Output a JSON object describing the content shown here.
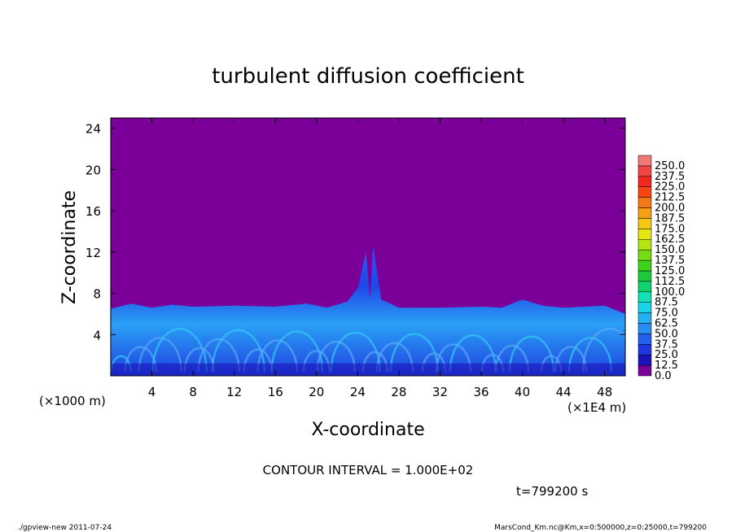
{
  "chart_data": {
    "type": "heatmap",
    "title": "turbulent diffusion coefficient",
    "xlabel": "X-coordinate",
    "ylabel": "Z-coordinate",
    "x_unit": "(×1E4 m)",
    "y_unit": "(×1000 m)",
    "xlim": [
      0,
      50
    ],
    "ylim": [
      0,
      25
    ],
    "x_ticks": [
      "4",
      "8",
      "12",
      "16",
      "20",
      "24",
      "28",
      "32",
      "36",
      "40",
      "44",
      "48"
    ],
    "y_ticks": [
      "4",
      "8",
      "12",
      "16",
      "20",
      "24"
    ],
    "x_tick_values": [
      4,
      8,
      12,
      16,
      20,
      24,
      28,
      32,
      36,
      40,
      44,
      48
    ],
    "y_tick_values": [
      4,
      8,
      12,
      16,
      20,
      24
    ],
    "colorbar": {
      "levels": [
        "0.0",
        "12.5",
        "25.0",
        "37.5",
        "50.0",
        "62.5",
        "75.0",
        "87.5",
        "100.0",
        "112.5",
        "125.0",
        "137.5",
        "150.0",
        "162.5",
        "175.0",
        "187.5",
        "200.0",
        "212.5",
        "225.0",
        "237.5",
        "250.0"
      ],
      "colors": [
        "#7a0099",
        "#1a14b8",
        "#1f35e0",
        "#2460f0",
        "#2a8cf5",
        "#23b2f0",
        "#19d4e8",
        "#14e0b4",
        "#12d46e",
        "#1ec83c",
        "#3cd41a",
        "#78dc14",
        "#b4e614",
        "#e6e614",
        "#f5c814",
        "#f5a014",
        "#f57814",
        "#f54614",
        "#f0281e",
        "#f04646",
        "#f07878"
      ]
    },
    "boundary_layer_top": [
      [
        0,
        6.5
      ],
      [
        2,
        7.0
      ],
      [
        4,
        6.6
      ],
      [
        6,
        6.9
      ],
      [
        8,
        6.7
      ],
      [
        12,
        6.8
      ],
      [
        16,
        6.7
      ],
      [
        19,
        7.0
      ],
      [
        21,
        6.6
      ],
      [
        23,
        7.2
      ],
      [
        24,
        8.5
      ],
      [
        24.8,
        12.0
      ],
      [
        25.2,
        7.5
      ],
      [
        25.5,
        12.5
      ],
      [
        26.3,
        7.4
      ],
      [
        28,
        6.6
      ],
      [
        32,
        6.6
      ],
      [
        36,
        6.7
      ],
      [
        38,
        6.6
      ],
      [
        40,
        7.4
      ],
      [
        42,
        6.8
      ],
      [
        44,
        6.6
      ],
      [
        48,
        6.8
      ],
      [
        50,
        6.0
      ]
    ],
    "contour_interval": "CONTOUR INTERVAL = 1.000E+02",
    "time": "t=799200 s"
  },
  "footer": {
    "left": "./gpview-new   2011-07-24",
    "right": "MarsCond_Km.nc@Km,x=0:500000,z=0:25000,t=799200"
  }
}
